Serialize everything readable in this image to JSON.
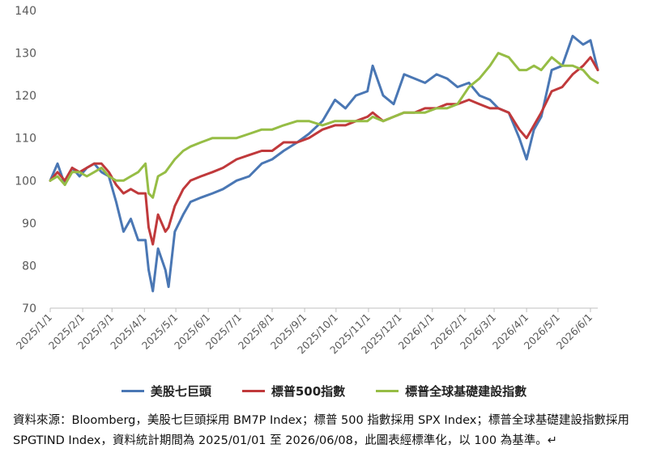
{
  "chart_data": {
    "type": "line",
    "title": "",
    "xlabel": "",
    "ylabel": "",
    "ylim": [
      70,
      140
    ],
    "yticks": [
      70,
      80,
      90,
      100,
      110,
      120,
      130,
      140
    ],
    "xtick_labels": [
      "2025/1/1",
      "2025/2/1",
      "2025/3/1",
      "2025/4/1",
      "2025/5/1",
      "2025/6/1",
      "2025/7/1",
      "2025/8/1",
      "2025/9/1",
      "2025/10/1",
      "2025/11/1",
      "2025/12/1",
      "2026/1/1",
      "2026/2/1",
      "2026/3/1",
      "2026/4/1",
      "2026/5/1",
      "2026/6/1"
    ],
    "x_range": [
      "2025/1/1",
      "2026/6/8"
    ],
    "grid": false,
    "legend_position": "bottom",
    "series": [
      {
        "name": "美股七巨頭",
        "color": "#4a77b4",
        "points": [
          [
            "2025/1/1",
            100
          ],
          [
            "2025/1/8",
            104
          ],
          [
            "2025/1/15",
            99
          ],
          [
            "2025/1/22",
            103
          ],
          [
            "2025/1/29",
            101
          ],
          [
            "2025/2/5",
            103
          ],
          [
            "2025/2/12",
            104
          ],
          [
            "2025/2/19",
            102
          ],
          [
            "2025/2/26",
            101
          ],
          [
            "2025/3/5",
            95
          ],
          [
            "2025/3/12",
            88
          ],
          [
            "2025/3/19",
            91
          ],
          [
            "2025/3/26",
            86
          ],
          [
            "2025/4/2",
            86
          ],
          [
            "2025/4/5",
            79
          ],
          [
            "2025/4/9",
            74
          ],
          [
            "2025/4/14",
            84
          ],
          [
            "2025/4/21",
            79
          ],
          [
            "2025/4/24",
            75
          ],
          [
            "2025/4/30",
            88
          ],
          [
            "2025/5/8",
            92
          ],
          [
            "2025/5/15",
            95
          ],
          [
            "2025/5/25",
            96
          ],
          [
            "2025/6/5",
            97
          ],
          [
            "2025/6/15",
            98
          ],
          [
            "2025/6/28",
            100
          ],
          [
            "2025/7/10",
            101
          ],
          [
            "2025/7/22",
            104
          ],
          [
            "2025/8/1",
            105
          ],
          [
            "2025/8/12",
            107
          ],
          [
            "2025/8/25",
            109
          ],
          [
            "2025/9/5",
            111
          ],
          [
            "2025/9/18",
            114
          ],
          [
            "2025/9/30",
            119
          ],
          [
            "2025/10/10",
            117
          ],
          [
            "2025/10/20",
            120
          ],
          [
            "2025/10/31",
            121
          ],
          [
            "2025/11/5",
            127
          ],
          [
            "2025/11/15",
            120
          ],
          [
            "2025/11/25",
            118
          ],
          [
            "2025/12/5",
            125
          ],
          [
            "2025/12/15",
            124
          ],
          [
            "2025/12/25",
            123
          ],
          [
            "2026/1/5",
            125
          ],
          [
            "2026/1/15",
            124
          ],
          [
            "2026/1/25",
            122
          ],
          [
            "2026/2/5",
            123
          ],
          [
            "2026/2/15",
            120
          ],
          [
            "2026/2/25",
            119
          ],
          [
            "2026/3/5",
            117
          ],
          [
            "2026/3/15",
            116
          ],
          [
            "2026/3/25",
            110
          ],
          [
            "2026/4/1",
            105
          ],
          [
            "2026/4/8",
            112
          ],
          [
            "2026/4/15",
            115
          ],
          [
            "2026/4/25",
            126
          ],
          [
            "2026/5/5",
            127
          ],
          [
            "2026/5/15",
            134
          ],
          [
            "2026/5/25",
            132
          ],
          [
            "2026/6/1",
            133
          ],
          [
            "2026/6/8",
            126
          ]
        ]
      },
      {
        "name": "標普500指數",
        "color": "#c0393b",
        "points": [
          [
            "2025/1/1",
            100
          ],
          [
            "2025/1/8",
            102
          ],
          [
            "2025/1/15",
            100
          ],
          [
            "2025/1/22",
            103
          ],
          [
            "2025/1/29",
            102
          ],
          [
            "2025/2/5",
            103
          ],
          [
            "2025/2/12",
            104
          ],
          [
            "2025/2/19",
            104
          ],
          [
            "2025/2/26",
            102
          ],
          [
            "2025/3/5",
            99
          ],
          [
            "2025/3/12",
            97
          ],
          [
            "2025/3/19",
            98
          ],
          [
            "2025/3/26",
            97
          ],
          [
            "2025/4/2",
            97
          ],
          [
            "2025/4/5",
            89
          ],
          [
            "2025/4/9",
            85
          ],
          [
            "2025/4/14",
            92
          ],
          [
            "2025/4/21",
            88
          ],
          [
            "2025/4/24",
            89
          ],
          [
            "2025/4/30",
            94
          ],
          [
            "2025/5/8",
            98
          ],
          [
            "2025/5/15",
            100
          ],
          [
            "2025/5/25",
            101
          ],
          [
            "2025/6/5",
            102
          ],
          [
            "2025/6/15",
            103
          ],
          [
            "2025/6/28",
            105
          ],
          [
            "2025/7/10",
            106
          ],
          [
            "2025/7/22",
            107
          ],
          [
            "2025/8/1",
            107
          ],
          [
            "2025/8/12",
            109
          ],
          [
            "2025/8/25",
            109
          ],
          [
            "2025/9/5",
            110
          ],
          [
            "2025/9/18",
            112
          ],
          [
            "2025/9/30",
            113
          ],
          [
            "2025/10/10",
            113
          ],
          [
            "2025/10/20",
            114
          ],
          [
            "2025/10/31",
            115
          ],
          [
            "2025/11/5",
            116
          ],
          [
            "2025/11/15",
            114
          ],
          [
            "2025/11/25",
            115
          ],
          [
            "2025/12/5",
            116
          ],
          [
            "2025/12/15",
            116
          ],
          [
            "2025/12/25",
            117
          ],
          [
            "2026/1/5",
            117
          ],
          [
            "2026/1/15",
            118
          ],
          [
            "2026/1/25",
            118
          ],
          [
            "2026/2/5",
            119
          ],
          [
            "2026/2/15",
            118
          ],
          [
            "2026/2/25",
            117
          ],
          [
            "2026/3/5",
            117
          ],
          [
            "2026/3/15",
            116
          ],
          [
            "2026/3/25",
            112
          ],
          [
            "2026/4/1",
            110
          ],
          [
            "2026/4/8",
            113
          ],
          [
            "2026/4/15",
            116
          ],
          [
            "2026/4/25",
            121
          ],
          [
            "2026/5/5",
            122
          ],
          [
            "2026/5/15",
            125
          ],
          [
            "2026/5/25",
            127
          ],
          [
            "2026/6/1",
            129
          ],
          [
            "2026/6/8",
            126
          ]
        ]
      },
      {
        "name": "標普全球基礎建設指數",
        "color": "#96bd45",
        "points": [
          [
            "2025/1/1",
            100
          ],
          [
            "2025/1/8",
            101
          ],
          [
            "2025/1/15",
            99
          ],
          [
            "2025/1/22",
            102
          ],
          [
            "2025/1/29",
            102
          ],
          [
            "2025/2/5",
            101
          ],
          [
            "2025/2/12",
            102
          ],
          [
            "2025/2/19",
            103
          ],
          [
            "2025/2/26",
            101
          ],
          [
            "2025/3/5",
            100
          ],
          [
            "2025/3/12",
            100
          ],
          [
            "2025/3/19",
            101
          ],
          [
            "2025/3/26",
            102
          ],
          [
            "2025/4/2",
            104
          ],
          [
            "2025/4/5",
            97
          ],
          [
            "2025/4/9",
            96
          ],
          [
            "2025/4/14",
            101
          ],
          [
            "2025/4/21",
            102
          ],
          [
            "2025/4/24",
            103
          ],
          [
            "2025/4/30",
            105
          ],
          [
            "2025/5/8",
            107
          ],
          [
            "2025/5/15",
            108
          ],
          [
            "2025/5/25",
            109
          ],
          [
            "2025/6/5",
            110
          ],
          [
            "2025/6/15",
            110
          ],
          [
            "2025/6/28",
            110
          ],
          [
            "2025/7/10",
            111
          ],
          [
            "2025/7/22",
            112
          ],
          [
            "2025/8/1",
            112
          ],
          [
            "2025/8/12",
            113
          ],
          [
            "2025/8/25",
            114
          ],
          [
            "2025/9/5",
            114
          ],
          [
            "2025/9/18",
            113
          ],
          [
            "2025/9/30",
            114
          ],
          [
            "2025/10/10",
            114
          ],
          [
            "2025/10/20",
            114
          ],
          [
            "2025/10/31",
            114
          ],
          [
            "2025/11/5",
            115
          ],
          [
            "2025/11/15",
            114
          ],
          [
            "2025/11/25",
            115
          ],
          [
            "2025/12/5",
            116
          ],
          [
            "2025/12/15",
            116
          ],
          [
            "2025/12/25",
            116
          ],
          [
            "2026/1/5",
            117
          ],
          [
            "2026/1/15",
            117
          ],
          [
            "2026/1/25",
            118
          ],
          [
            "2026/2/5",
            122
          ],
          [
            "2026/2/15",
            124
          ],
          [
            "2026/2/25",
            127
          ],
          [
            "2026/3/5",
            130
          ],
          [
            "2026/3/15",
            129
          ],
          [
            "2026/3/25",
            126
          ],
          [
            "2026/4/1",
            126
          ],
          [
            "2026/4/8",
            127
          ],
          [
            "2026/4/15",
            126
          ],
          [
            "2026/4/25",
            129
          ],
          [
            "2026/5/5",
            127
          ],
          [
            "2026/5/15",
            127
          ],
          [
            "2026/5/25",
            126
          ],
          [
            "2026/6/1",
            124
          ],
          [
            "2026/6/8",
            123
          ]
        ]
      }
    ]
  },
  "source_note": "資料來源：Bloomberg，美股七巨頭採用 BM7P Index；標普 500 指數採用 SPX Index；標普全球基礎建設指數採用 SPGTIND Index，資料統計期間為 2025/01/01 至 2026/06/08，此圖表經標準化，以 100 為基準。↵"
}
